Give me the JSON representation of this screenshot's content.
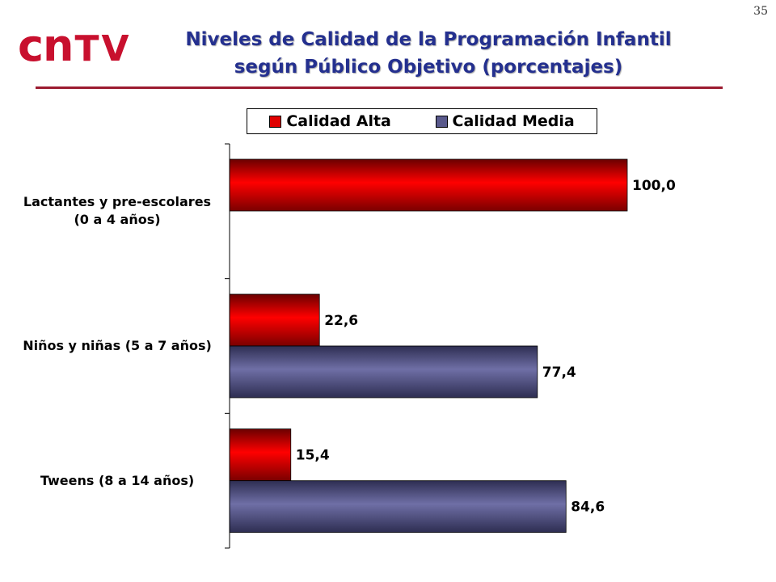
{
  "page": {
    "number": "35"
  },
  "logo": {
    "text_cn": "cn",
    "text_tv": "TV"
  },
  "header": {
    "title_line1": "Niveles de Calidad de la Programación Infantil",
    "title_line2": "según Público Objetivo (porcentajes)"
  },
  "colors": {
    "alta": "#e00000",
    "media": "#5a5a8c",
    "title": "#24308f",
    "rule": "#9b1b30"
  },
  "chart_data": {
    "type": "bar",
    "orientation": "horizontal",
    "title": "Niveles de Calidad de la Programación Infantil según Público Objetivo (porcentajes)",
    "categories": [
      "Lactantes y pre-escolares (0 a 4 años)",
      "Niños y niñas (5 a 7 años)",
      "Tweens (8 a 14 años)"
    ],
    "series": [
      {
        "name": "Calidad Alta",
        "values": [
          100.0,
          22.6,
          15.4
        ],
        "labels": [
          "100,0",
          "22,6",
          "15,4"
        ]
      },
      {
        "name": "Calidad Media",
        "values": [
          null,
          77.4,
          84.6
        ],
        "labels": [
          "",
          "77,4",
          "84,6"
        ]
      }
    ],
    "xlim": [
      0,
      100
    ],
    "legend_position": "top",
    "grid": false
  }
}
